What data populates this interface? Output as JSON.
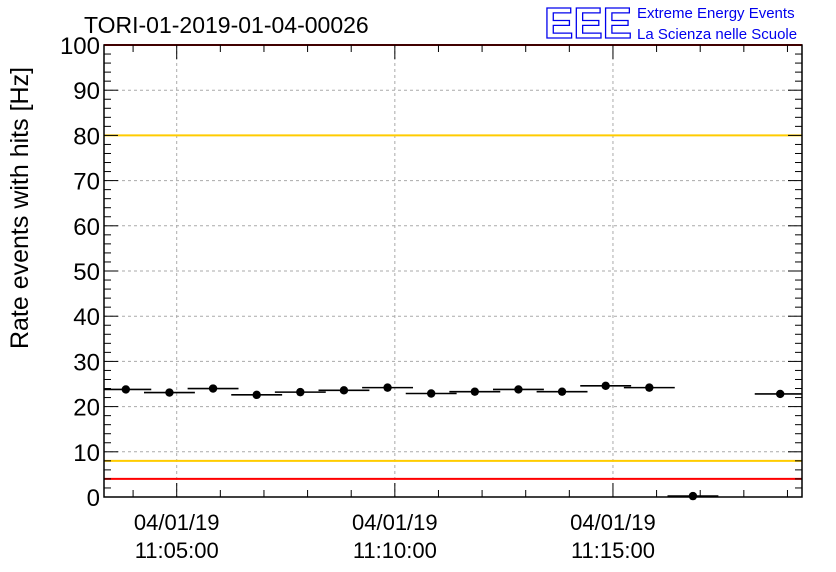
{
  "chart_data": {
    "type": "scatter",
    "title": "TORI-01-2019-01-04-00026",
    "ylabel": "Rate events with hits [Hz]",
    "xlabel": "",
    "ylim": [
      0,
      100
    ],
    "yticks": [
      0,
      10,
      20,
      30,
      40,
      50,
      60,
      70,
      80,
      90,
      100
    ],
    "xrange": [
      "2019-01-04 11:03:20",
      "2019-01-04 11:19:20"
    ],
    "xticks": [
      {
        "t": "2019-01-04 11:05:00",
        "date": "04/01/19",
        "time": "11:05:00"
      },
      {
        "t": "2019-01-04 11:10:00",
        "date": "04/01/19",
        "time": "11:10:00"
      },
      {
        "t": "2019-01-04 11:15:00",
        "date": "04/01/19",
        "time": "11:15:00"
      }
    ],
    "grid": true,
    "bin_width_seconds": 70,
    "points": [
      {
        "x": "2019-01-04 11:03:50",
        "y": 23.8
      },
      {
        "x": "2019-01-04 11:04:50",
        "y": 23.1
      },
      {
        "x": "2019-01-04 11:05:50",
        "y": 24.0
      },
      {
        "x": "2019-01-04 11:06:50",
        "y": 22.6
      },
      {
        "x": "2019-01-04 11:07:50",
        "y": 23.2
      },
      {
        "x": "2019-01-04 11:08:50",
        "y": 23.6
      },
      {
        "x": "2019-01-04 11:09:50",
        "y": 24.2
      },
      {
        "x": "2019-01-04 11:10:50",
        "y": 22.9
      },
      {
        "x": "2019-01-04 11:11:50",
        "y": 23.3
      },
      {
        "x": "2019-01-04 11:12:50",
        "y": 23.8
      },
      {
        "x": "2019-01-04 11:13:50",
        "y": 23.3
      },
      {
        "x": "2019-01-04 11:14:50",
        "y": 24.6
      },
      {
        "x": "2019-01-04 11:15:50",
        "y": 24.2
      },
      {
        "x": "2019-01-04 11:16:50",
        "y": 0.2
      },
      {
        "x": "2019-01-04 11:18:50",
        "y": 22.8
      }
    ],
    "reference_lines": [
      {
        "y": 100,
        "color": "#ff0000"
      },
      {
        "y": 80,
        "color": "#ffcc00"
      },
      {
        "y": 8,
        "color": "#ffcc00"
      },
      {
        "y": 4,
        "color": "#ff0000"
      }
    ],
    "marker_color": "#000000"
  },
  "logo": {
    "letters": "EEE",
    "line1": "Extreme Energy Events",
    "line2": "La Scienza nelle Scuole",
    "color": "#0000ee"
  }
}
